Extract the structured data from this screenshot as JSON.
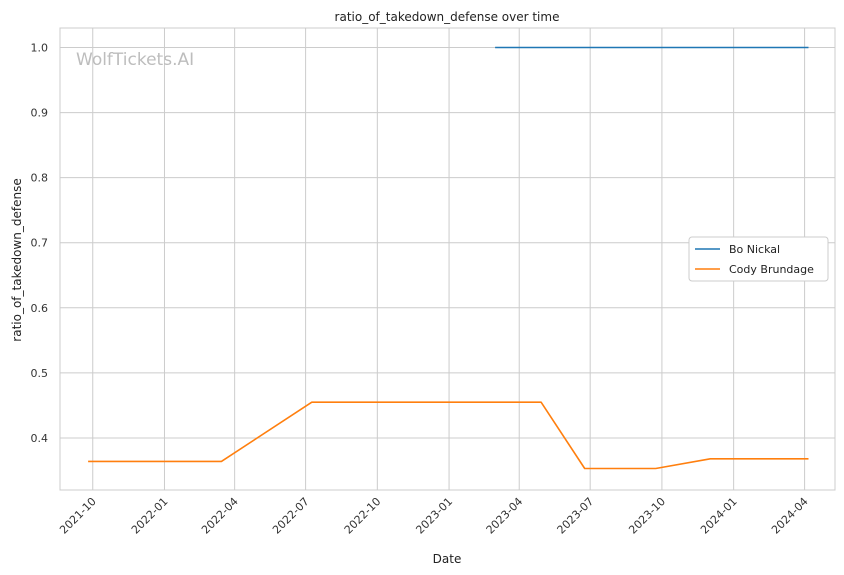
{
  "chart_data": {
    "type": "line",
    "title": "ratio_of_takedown_defense over time",
    "xlabel": "Date",
    "ylabel": "ratio_of_takedown_defense",
    "watermark": "WolfTickets.AI",
    "x_ticks": [
      "2021-10",
      "2022-01",
      "2022-04",
      "2022-07",
      "2022-10",
      "2023-01",
      "2023-04",
      "2023-07",
      "2023-10",
      "2024-01",
      "2024-04"
    ],
    "y_ticks": [
      "0.4",
      "0.5",
      "0.6",
      "0.7",
      "0.8",
      "0.9",
      "1.0"
    ],
    "xlim": [
      "2021-08-20",
      "2024-05-10"
    ],
    "ylim": [
      0.32,
      1.03
    ],
    "grid": true,
    "legend_position": "center-right",
    "series": [
      {
        "name": "Bo Nickal",
        "color": "#1f77b4",
        "points": [
          {
            "x": "2023-03-01",
            "y": 1.0
          },
          {
            "x": "2024-04-06",
            "y": 1.0
          }
        ]
      },
      {
        "name": "Cody Brundage",
        "color": "#ff7f0e",
        "points": [
          {
            "x": "2021-09-25",
            "y": 0.364
          },
          {
            "x": "2022-03-15",
            "y": 0.364
          },
          {
            "x": "2022-07-09",
            "y": 0.455
          },
          {
            "x": "2023-04-29",
            "y": 0.455
          },
          {
            "x": "2023-06-24",
            "y": 0.353
          },
          {
            "x": "2023-09-23",
            "y": 0.353
          },
          {
            "x": "2023-12-02",
            "y": 0.368
          },
          {
            "x": "2024-04-06",
            "y": 0.368
          }
        ]
      }
    ]
  }
}
